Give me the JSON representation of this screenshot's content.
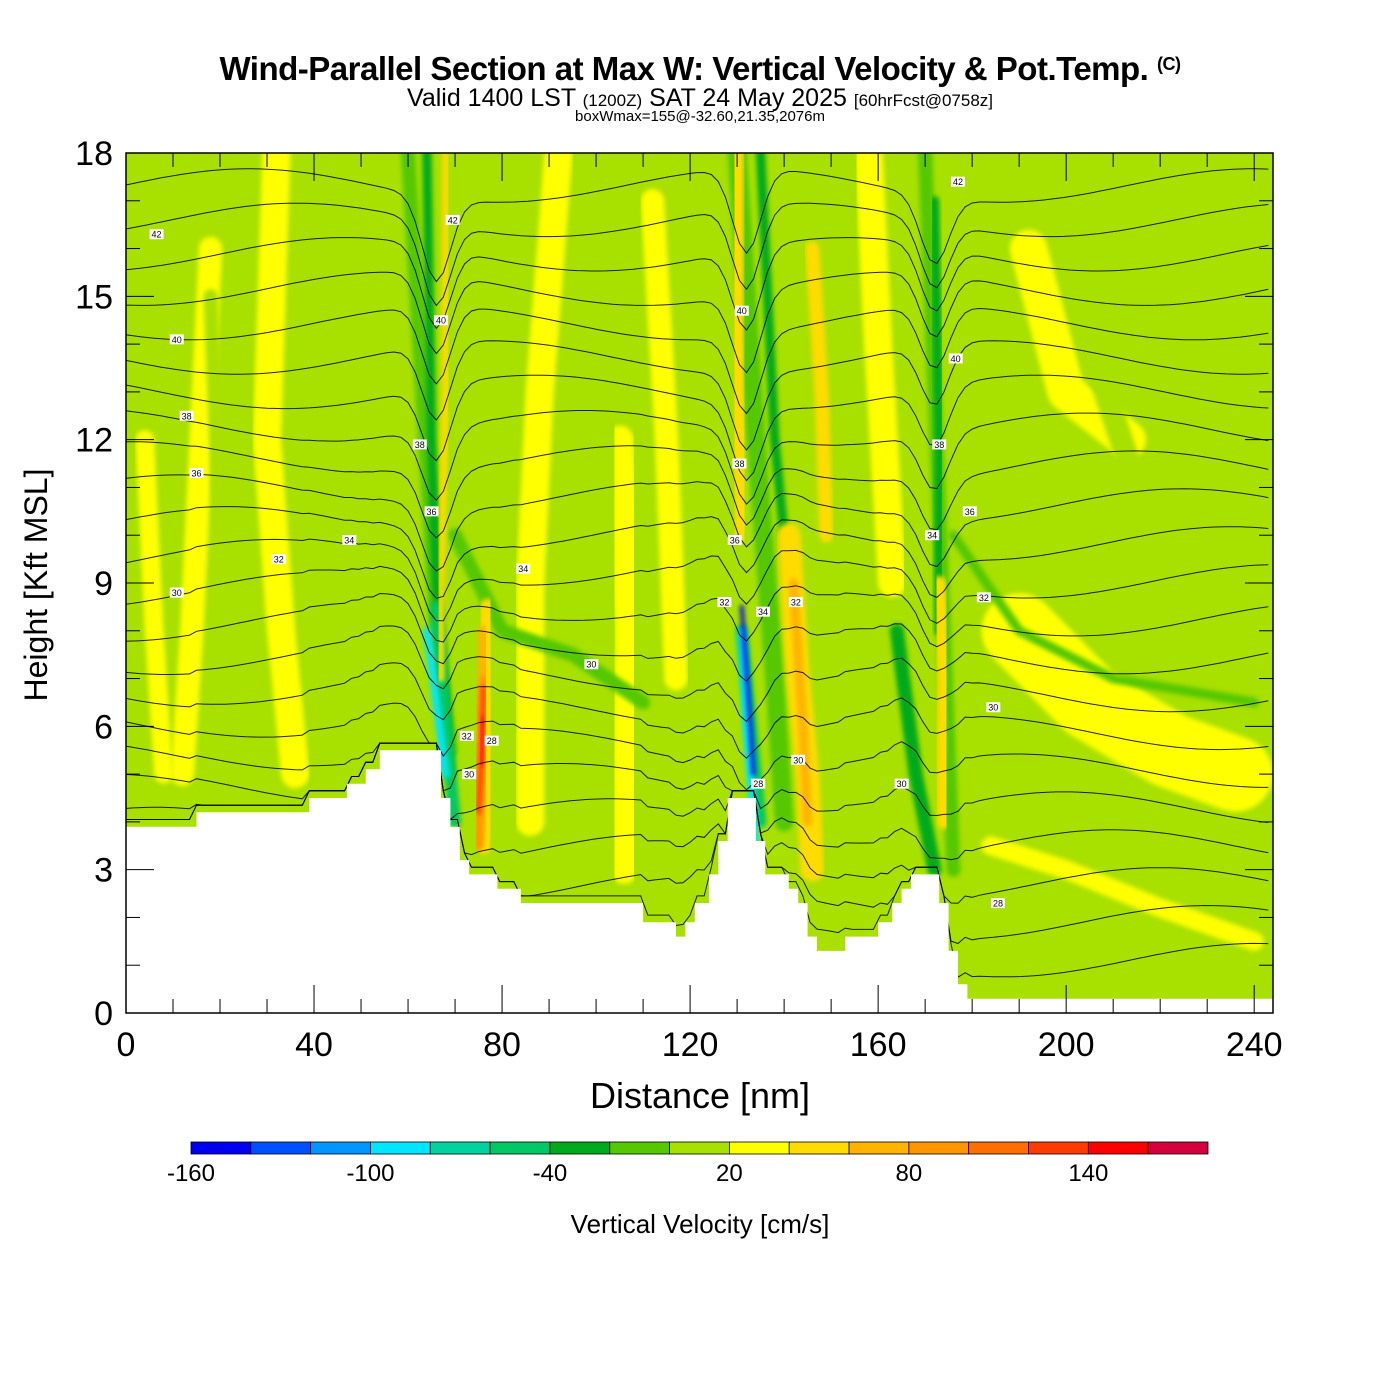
{
  "header": {
    "title": "Wind-Parallel Section at Max W: Vertical Velocity & Pot.Temp.",
    "copyright": "(C)",
    "valid_prefix": "Valid 1400 LST",
    "valid_utc": "(1200Z)",
    "valid_date": "SAT 24 May 2025",
    "forecast": "[60hrFcst@0758z]",
    "box_info": "boxWmax=155@-32.60,21.35,2076m"
  },
  "chart_data": {
    "type": "heatmap",
    "title": "Wind-Parallel Section at Max W: Vertical Velocity & Pot.Temp.",
    "xlabel": "Distance [nm]",
    "ylabel": "Height [Kft MSL]",
    "xlim": [
      0,
      244
    ],
    "ylim": [
      0,
      18
    ],
    "x_ticks": [
      0,
      40,
      80,
      120,
      160,
      200,
      240
    ],
    "y_ticks": [
      0,
      3,
      6,
      9,
      12,
      15,
      18
    ],
    "colorbar": {
      "label": "Vertical Velocity [cm/s]",
      "levels": [
        -160,
        -140,
        -120,
        -100,
        -80,
        -60,
        -40,
        -20,
        0,
        20,
        40,
        60,
        80,
        100,
        120,
        140,
        160,
        180
      ],
      "tick_labels": [
        "-160",
        "-100",
        "-40",
        "20",
        "80",
        "140"
      ],
      "colors": [
        "#0000f0",
        "#0050ff",
        "#0096ff",
        "#00e6ff",
        "#00d2a0",
        "#00c864",
        "#00aa1e",
        "#55c800",
        "#a8e000",
        "#ffff00",
        "#ffdc00",
        "#ffb400",
        "#ff9600",
        "#ff6e00",
        "#ff3c00",
        "#ff0000",
        "#d2003c"
      ]
    },
    "background_w_level_cm_s": 0,
    "terrain_kft": [
      {
        "x": 0,
        "h": 3.9
      },
      {
        "x": 15,
        "h": 3.9
      },
      {
        "x": 15,
        "h": 4.2
      },
      {
        "x": 39,
        "h": 4.2
      },
      {
        "x": 39,
        "h": 4.5
      },
      {
        "x": 47,
        "h": 4.5
      },
      {
        "x": 47,
        "h": 4.8
      },
      {
        "x": 51,
        "h": 4.8
      },
      {
        "x": 51,
        "h": 5.1
      },
      {
        "x": 54,
        "h": 5.1
      },
      {
        "x": 54,
        "h": 5.5
      },
      {
        "x": 67,
        "h": 5.5
      },
      {
        "x": 67,
        "h": 4.5
      },
      {
        "x": 69,
        "h": 4.5
      },
      {
        "x": 69,
        "h": 3.9
      },
      {
        "x": 71,
        "h": 3.9
      },
      {
        "x": 71,
        "h": 3.2
      },
      {
        "x": 73,
        "h": 3.2
      },
      {
        "x": 73,
        "h": 2.9
      },
      {
        "x": 79,
        "h": 2.9
      },
      {
        "x": 79,
        "h": 2.6
      },
      {
        "x": 84,
        "h": 2.6
      },
      {
        "x": 84,
        "h": 2.3
      },
      {
        "x": 110,
        "h": 2.3
      },
      {
        "x": 110,
        "h": 1.9
      },
      {
        "x": 117,
        "h": 1.9
      },
      {
        "x": 117,
        "h": 1.6
      },
      {
        "x": 119,
        "h": 1.6
      },
      {
        "x": 119,
        "h": 1.9
      },
      {
        "x": 121,
        "h": 1.9
      },
      {
        "x": 121,
        "h": 2.3
      },
      {
        "x": 124,
        "h": 2.3
      },
      {
        "x": 124,
        "h": 2.9
      },
      {
        "x": 126,
        "h": 2.9
      },
      {
        "x": 126,
        "h": 3.6
      },
      {
        "x": 128,
        "h": 3.6
      },
      {
        "x": 128,
        "h": 4.5
      },
      {
        "x": 134,
        "h": 4.5
      },
      {
        "x": 134,
        "h": 3.6
      },
      {
        "x": 136,
        "h": 3.6
      },
      {
        "x": 136,
        "h": 2.9
      },
      {
        "x": 141,
        "h": 2.9
      },
      {
        "x": 141,
        "h": 2.6
      },
      {
        "x": 143,
        "h": 2.6
      },
      {
        "x": 143,
        "h": 2.3
      },
      {
        "x": 145,
        "h": 2.3
      },
      {
        "x": 145,
        "h": 1.6
      },
      {
        "x": 147,
        "h": 1.6
      },
      {
        "x": 147,
        "h": 1.3
      },
      {
        "x": 153,
        "h": 1.3
      },
      {
        "x": 153,
        "h": 1.6
      },
      {
        "x": 160,
        "h": 1.6
      },
      {
        "x": 160,
        "h": 1.9
      },
      {
        "x": 163,
        "h": 1.9
      },
      {
        "x": 163,
        "h": 2.3
      },
      {
        "x": 165,
        "h": 2.3
      },
      {
        "x": 165,
        "h": 2.6
      },
      {
        "x": 167,
        "h": 2.6
      },
      {
        "x": 167,
        "h": 2.9
      },
      {
        "x": 173,
        "h": 2.9
      },
      {
        "x": 173,
        "h": 2.3
      },
      {
        "x": 175,
        "h": 2.3
      },
      {
        "x": 175,
        "h": 1.3
      },
      {
        "x": 177,
        "h": 1.3
      },
      {
        "x": 177,
        "h": 0.6
      },
      {
        "x": 179,
        "h": 0.6
      },
      {
        "x": 179,
        "h": 0.3
      },
      {
        "x": 244,
        "h": 0.3
      }
    ],
    "w_features": [
      {
        "kind": "band",
        "level": 20,
        "path": [
          [
            32,
            18
          ],
          [
            30,
            12
          ],
          [
            33,
            8
          ],
          [
            36,
            5
          ]
        ],
        "width": 6
      },
      {
        "kind": "band",
        "level": 20,
        "path": [
          [
            18,
            16
          ],
          [
            16,
            12
          ],
          [
            14,
            8
          ],
          [
            12,
            5
          ]
        ],
        "width": 5
      },
      {
        "kind": "band",
        "level": 20,
        "path": [
          [
            4,
            12
          ],
          [
            6,
            8
          ],
          [
            8,
            5
          ]
        ],
        "width": 4
      },
      {
        "kind": "band",
        "level": 20,
        "path": [
          [
            92,
            18
          ],
          [
            88,
            13
          ],
          [
            86,
            9
          ],
          [
            86,
            4
          ]
        ],
        "width": 6
      },
      {
        "kind": "band",
        "level": 20,
        "path": [
          [
            105,
            12
          ],
          [
            107,
            8
          ],
          [
            106,
            3
          ]
        ],
        "width": 6
      },
      {
        "kind": "band",
        "level": 20,
        "path": [
          [
            112,
            17
          ],
          [
            115,
            12
          ],
          [
            117,
            7
          ]
        ],
        "width": 5
      },
      {
        "kind": "band",
        "level": 20,
        "path": [
          [
            158,
            18
          ],
          [
            160,
            14
          ],
          [
            163,
            9
          ]
        ],
        "width": 6
      },
      {
        "kind": "band",
        "level": 20,
        "path": [
          [
            192,
            16
          ],
          [
            200,
            13
          ],
          [
            213,
            12
          ]
        ],
        "width": 8
      },
      {
        "kind": "band",
        "level": 20,
        "path": [
          [
            190,
            8
          ],
          [
            205,
            6.5
          ],
          [
            222,
            5.5
          ],
          [
            236,
            5
          ]
        ],
        "width": 16
      },
      {
        "kind": "band",
        "level": 20,
        "path": [
          [
            184,
            3.5
          ],
          [
            200,
            3
          ],
          [
            220,
            2.2
          ],
          [
            240,
            1.5
          ]
        ],
        "width": 4
      },
      {
        "kind": "band",
        "level": 0,
        "path": [
          [
            18,
            15
          ],
          [
            20,
            10
          ],
          [
            22,
            7
          ],
          [
            24,
            5
          ]
        ],
        "width": 3
      },
      {
        "kind": "band",
        "level": 0,
        "path": [
          [
            140,
            17
          ],
          [
            146,
            13
          ],
          [
            152,
            10
          ],
          [
            158,
            7
          ]
        ],
        "width": 4
      },
      {
        "kind": "band",
        "level": 0,
        "path": [
          [
            198,
            17
          ],
          [
            205,
            14
          ],
          [
            215,
            11
          ],
          [
            235,
            9
          ]
        ],
        "width": 5
      },
      {
        "kind": "band",
        "level": -20,
        "path": [
          [
            70,
            10
          ],
          [
            80,
            8
          ],
          [
            95,
            7.5
          ],
          [
            110,
            6.5
          ]
        ],
        "width": 3
      },
      {
        "kind": "band",
        "level": -20,
        "path": [
          [
            176,
            10
          ],
          [
            190,
            8
          ],
          [
            210,
            7
          ],
          [
            240,
            6.5
          ]
        ],
        "width": 2
      },
      {
        "kind": "band",
        "level": -20,
        "path": [
          [
            60,
            18
          ],
          [
            63,
            13
          ],
          [
            66,
            8
          ],
          [
            69,
            5.5
          ]
        ],
        "width": 3
      },
      {
        "kind": "band",
        "level": -20,
        "path": [
          [
            130,
            18
          ],
          [
            134,
            12
          ],
          [
            138,
            7
          ],
          [
            140,
            4
          ]
        ],
        "width": 4
      },
      {
        "kind": "band",
        "level": -20,
        "path": [
          [
            170,
            18
          ],
          [
            172,
            13
          ],
          [
            174,
            8
          ],
          [
            176,
            3
          ]
        ],
        "width": 3
      },
      {
        "kind": "band",
        "level": -40,
        "path": [
          [
            64,
            18
          ],
          [
            65,
            12
          ],
          [
            66,
            9
          ],
          [
            69,
            5
          ]
        ],
        "width": 2
      },
      {
        "kind": "band",
        "level": -40,
        "path": [
          [
            135,
            18
          ],
          [
            138,
            12
          ],
          [
            142,
            8
          ]
        ],
        "width": 2
      },
      {
        "kind": "band",
        "level": -40,
        "path": [
          [
            172,
            17
          ],
          [
            173,
            12
          ],
          [
            173,
            8
          ]
        ],
        "width": 2
      },
      {
        "kind": "band",
        "level": -40,
        "path": [
          [
            164,
            8
          ],
          [
            168,
            5
          ],
          [
            172,
            3
          ]
        ],
        "width": 3
      },
      {
        "kind": "band",
        "level": -60,
        "path": [
          [
            66,
            8.5
          ],
          [
            68,
            6
          ],
          [
            70,
            4
          ]
        ],
        "width": 2.5
      },
      {
        "kind": "band",
        "level": -60,
        "path": [
          [
            131,
            8
          ],
          [
            133,
            6
          ],
          [
            135,
            4
          ]
        ],
        "width": 2.5
      },
      {
        "kind": "band",
        "level": -100,
        "path": [
          [
            64,
            8
          ],
          [
            66,
            6.5
          ],
          [
            68,
            5
          ]
        ],
        "width": 1.6
      },
      {
        "kind": "band",
        "level": -100,
        "path": [
          [
            131,
            8
          ],
          [
            132,
            6
          ],
          [
            134,
            3.5
          ]
        ],
        "width": 1.6
      },
      {
        "kind": "band",
        "level": -160,
        "path": [
          [
            131,
            8.5
          ],
          [
            132.5,
            6.5
          ],
          [
            133.5,
            5
          ]
        ],
        "width": 0.8
      },
      {
        "kind": "band",
        "level": 40,
        "path": [
          [
            68,
            18
          ],
          [
            68,
            13
          ],
          [
            67,
            9
          ],
          [
            67,
            7
          ]
        ],
        "width": 1.5
      },
      {
        "kind": "band",
        "level": 40,
        "path": [
          [
            130,
            18
          ],
          [
            130,
            13
          ],
          [
            131,
            10
          ]
        ],
        "width": 3
      },
      {
        "kind": "band",
        "level": 40,
        "path": [
          [
            146,
            16
          ],
          [
            148,
            13
          ],
          [
            149,
            10
          ]
        ],
        "width": 3
      },
      {
        "kind": "band",
        "level": 40,
        "path": [
          [
            141,
            10
          ],
          [
            143,
            7
          ],
          [
            145,
            5
          ],
          [
            146,
            3
          ]
        ],
        "width": 5
      },
      {
        "kind": "band",
        "level": 40,
        "path": [
          [
            173,
            9
          ],
          [
            174,
            7
          ],
          [
            174,
            4
          ]
        ],
        "width": 3
      },
      {
        "kind": "band",
        "level": 40,
        "path": [
          [
            77,
            8.5
          ],
          [
            77,
            6
          ],
          [
            76,
            3.5
          ]
        ],
        "width": 3.5
      },
      {
        "kind": "band",
        "level": 60,
        "path": [
          [
            130,
            17
          ],
          [
            130,
            13
          ]
        ],
        "width": 1.4
      },
      {
        "kind": "band",
        "level": 60,
        "path": [
          [
            142,
            9
          ],
          [
            144,
            6
          ],
          [
            145,
            4
          ]
        ],
        "width": 2
      },
      {
        "kind": "band",
        "level": 60,
        "path": [
          [
            66,
            13
          ],
          [
            66,
            11
          ]
        ],
        "width": 1.2
      },
      {
        "kind": "band",
        "level": 60,
        "path": [
          [
            76,
            8
          ],
          [
            76,
            6
          ],
          [
            75,
            3.5
          ]
        ],
        "width": 2.2
      },
      {
        "kind": "band",
        "level": 80,
        "path": [
          [
            76,
            7
          ],
          [
            75.5,
            5
          ],
          [
            75,
            3.5
          ]
        ],
        "width": 1.6
      },
      {
        "kind": "band",
        "level": 120,
        "path": [
          [
            76,
            6.8
          ],
          [
            75.5,
            5.2
          ],
          [
            75,
            4.2
          ]
        ],
        "width": 1.0
      },
      {
        "kind": "band",
        "level": 140,
        "path": [
          [
            76,
            6.2
          ],
          [
            75.6,
            5.2
          ]
        ],
        "width": 0.6
      }
    ],
    "theta_contours_K": [
      28,
      30,
      32,
      34,
      36,
      38,
      40,
      42
    ],
    "theta_labels": [
      {
        "text": "42",
        "x": 6.5,
        "y": 16.3
      },
      {
        "text": "40",
        "x": 10.8,
        "y": 14.1
      },
      {
        "text": "38",
        "x": 12.9,
        "y": 12.5
      },
      {
        "text": "36",
        "x": 15,
        "y": 11.3
      },
      {
        "text": "34",
        "x": 47.5,
        "y": 9.9
      },
      {
        "text": "32",
        "x": 32.5,
        "y": 9.5
      },
      {
        "text": "30",
        "x": 10.8,
        "y": 8.8
      },
      {
        "text": "30",
        "x": 99,
        "y": 7.3
      },
      {
        "text": "34",
        "x": 84.5,
        "y": 9.3
      },
      {
        "text": "42",
        "x": 69.5,
        "y": 16.6
      },
      {
        "text": "40",
        "x": 67,
        "y": 14.5
      },
      {
        "text": "38",
        "x": 62.5,
        "y": 11.9
      },
      {
        "text": "36",
        "x": 65,
        "y": 10.5
      },
      {
        "text": "32",
        "x": 72.5,
        "y": 5.8
      },
      {
        "text": "30",
        "x": 73,
        "y": 5
      },
      {
        "text": "28",
        "x": 77.8,
        "y": 5.7
      },
      {
        "text": "40",
        "x": 131,
        "y": 14.7
      },
      {
        "text": "38",
        "x": 130.5,
        "y": 11.5
      },
      {
        "text": "36",
        "x": 129.5,
        "y": 9.9
      },
      {
        "text": "32",
        "x": 127.3,
        "y": 8.6
      },
      {
        "text": "34",
        "x": 135.5,
        "y": 8.4
      },
      {
        "text": "32",
        "x": 142.5,
        "y": 8.6
      },
      {
        "text": "28",
        "x": 134.5,
        "y": 4.8
      },
      {
        "text": "30",
        "x": 143,
        "y": 5.3
      },
      {
        "text": "42",
        "x": 177,
        "y": 17.4
      },
      {
        "text": "40",
        "x": 176.5,
        "y": 13.7
      },
      {
        "text": "38",
        "x": 173,
        "y": 11.9
      },
      {
        "text": "36",
        "x": 179.5,
        "y": 10.5
      },
      {
        "text": "34",
        "x": 171.5,
        "y": 10
      },
      {
        "text": "32",
        "x": 182.5,
        "y": 8.7
      },
      {
        "text": "30",
        "x": 184.5,
        "y": 6.4
      },
      {
        "text": "30",
        "x": 165,
        "y": 4.8
      },
      {
        "text": "28",
        "x": 185.5,
        "y": 2.3
      }
    ],
    "grid": false,
    "legend": "bottom colorbar"
  }
}
